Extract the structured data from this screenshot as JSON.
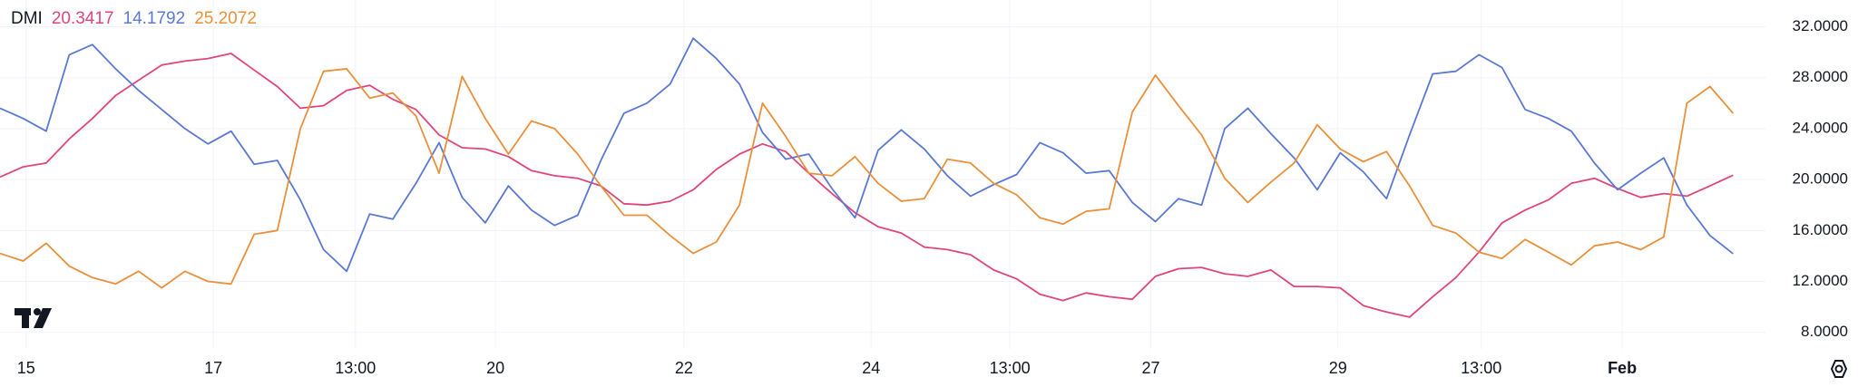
{
  "chart_data": {
    "type": "line",
    "title": "DMI",
    "xlim": [
      0,
      76.4
    ],
    "ylim": [
      6.7,
      34.1
    ],
    "xticks": [
      {
        "value": 1.13,
        "label": "15"
      },
      {
        "value": 9.23,
        "label": "17"
      },
      {
        "value": 15.38,
        "label": "13:00"
      },
      {
        "value": 21.44,
        "label": "20"
      },
      {
        "value": 29.6,
        "label": "22"
      },
      {
        "value": 37.7,
        "label": "24"
      },
      {
        "value": 43.7,
        "label": "13:00"
      },
      {
        "value": 49.8,
        "label": "27"
      },
      {
        "value": 57.9,
        "label": "29"
      },
      {
        "value": 64.1,
        "label": "13:00"
      },
      {
        "value": 70.2,
        "label": "Feb"
      }
    ],
    "yticks": [
      {
        "value": 8,
        "label": "8.0000"
      },
      {
        "value": 12,
        "label": "12.0000"
      },
      {
        "value": 16,
        "label": "16.0000"
      },
      {
        "value": 20,
        "label": "20.0000"
      },
      {
        "value": 24,
        "label": "24.0000"
      },
      {
        "value": 28,
        "label": "28.0000"
      },
      {
        "value": 32,
        "label": "32.0000"
      }
    ],
    "grid": true,
    "series": [
      {
        "color": "#e0457b",
        "values": [
          20.2,
          21,
          21.3,
          23.2,
          24.8,
          26.6,
          27.8,
          29,
          29.3,
          29.5,
          29.9,
          28.6,
          27.3,
          25.6,
          25.8,
          27,
          27.4,
          26.3,
          25.5,
          23.5,
          22.5,
          22.4,
          21.8,
          20.7,
          20.3,
          20.1,
          19.5,
          18.1,
          18,
          18.3,
          19.2,
          20.8,
          22,
          22.8,
          22.2,
          20.5,
          18.9,
          17.4,
          16.3,
          15.8,
          14.7,
          14.5,
          14.1,
          12.9,
          12.2,
          11,
          10.5,
          11.1,
          10.8,
          10.6,
          12.4,
          13,
          13.1,
          12.6,
          12.4,
          12.9,
          11.6,
          11.6,
          11.5,
          10.1,
          9.6,
          9.2,
          10.8,
          12.3,
          14.3,
          16.6,
          17.6,
          18.4,
          19.7,
          20.1,
          19.3,
          18.6,
          18.9,
          18.7,
          19.5,
          20.3417
        ]
      },
      {
        "color": "#5a79d4",
        "values": [
          25.6,
          24.8,
          23.8,
          29.8,
          30.6,
          28.7,
          27,
          25.5,
          24,
          22.8,
          23.8,
          21.2,
          21.5,
          18.4,
          14.5,
          12.8,
          17.3,
          16.9,
          19.7,
          22.9,
          18.6,
          16.6,
          19.5,
          17.6,
          16.4,
          17.2,
          21.5,
          25.2,
          26,
          27.5,
          31.1,
          29.5,
          27.5,
          23.7,
          21.6,
          22,
          19.3,
          17,
          22.3,
          23.9,
          22.4,
          20.3,
          18.7,
          19.6,
          20.4,
          22.9,
          22.1,
          20.5,
          20.7,
          18.2,
          16.7,
          18.5,
          18,
          24,
          25.6,
          23.6,
          21.7,
          19.2,
          22.1,
          20.6,
          18.5,
          23.5,
          28.3,
          28.5,
          29.8,
          28.8,
          25.5,
          24.8,
          23.8,
          21.3,
          19.2,
          20.5,
          21.7,
          18,
          15.6,
          14.1792
        ]
      },
      {
        "color": "#e8913a",
        "values": [
          14.2,
          13.6,
          15,
          13.2,
          12.3,
          11.8,
          12.8,
          11.5,
          12.8,
          12,
          11.8,
          15.7,
          16,
          24,
          28.5,
          28.7,
          26.4,
          26.8,
          25,
          20.5,
          28.1,
          24.8,
          22,
          24.6,
          24,
          22,
          19.5,
          17.2,
          17.2,
          15.6,
          14.2,
          15.1,
          18,
          26,
          23.4,
          20.5,
          20.3,
          21.8,
          19.7,
          18.3,
          18.5,
          21.6,
          21.3,
          19.7,
          18.8,
          17,
          16.5,
          17.5,
          17.7,
          25.3,
          28.2,
          25.8,
          23.5,
          20.1,
          18.2,
          19.8,
          21.3,
          24.3,
          22.4,
          21.4,
          22.2,
          19.5,
          16.4,
          15.8,
          14.3,
          13.8,
          15.3,
          14.3,
          13.3,
          14.8,
          15.1,
          14.5,
          15.5,
          26,
          27.3,
          25.2072
        ]
      }
    ]
  }
}
